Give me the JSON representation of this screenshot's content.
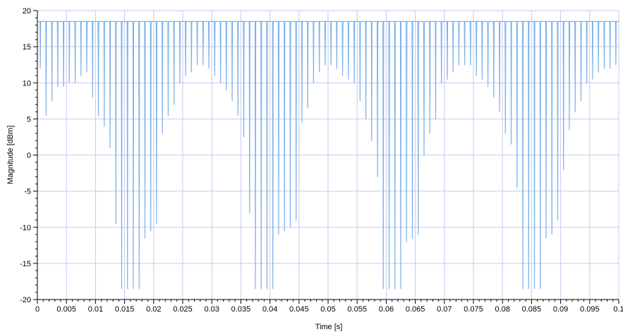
{
  "chart_data": {
    "type": "line",
    "title": "",
    "xlabel": "Time [s]",
    "ylabel": "Magnitude [dBm]",
    "xlim": [
      0,
      0.1
    ],
    "ylim": [
      -20,
      20
    ],
    "x_ticks": [
      "0",
      "0.005",
      "0.01",
      "0.015",
      "0.02",
      "0.025",
      "0.03",
      "0.035",
      "0.04",
      "0.045",
      "0.05",
      "0.055",
      "0.06",
      "0.065",
      "0.07",
      "0.075",
      "0.08",
      "0.085",
      "0.09",
      "0.095",
      "0.1"
    ],
    "y_ticks": [
      "20",
      "15",
      "10",
      "5",
      "0",
      "-5",
      "-10",
      "-15",
      "-20"
    ],
    "grid": true,
    "legend": "none",
    "line_color": "#7fb2ea",
    "grid_color": "#c6c8f0",
    "series": [
      {
        "peak_level": 18.5,
        "dip_period": 0.001,
        "x": [
          0.0005,
          0.0015,
          0.0025,
          0.0035,
          0.0045,
          0.0055,
          0.0065,
          0.0075,
          0.0085,
          0.0095,
          0.0105,
          0.0115,
          0.0125,
          0.0135,
          0.0145,
          0.0155,
          0.0165,
          0.0175,
          0.0185,
          0.0195,
          0.0205,
          0.0215,
          0.0225,
          0.0235,
          0.0245,
          0.0255,
          0.0265,
          0.0275,
          0.0285,
          0.0295,
          0.0305,
          0.0315,
          0.0325,
          0.0335,
          0.0345,
          0.0355,
          0.0365,
          0.0375,
          0.0385,
          0.0395,
          0.0405,
          0.0415,
          0.0425,
          0.0435,
          0.0445,
          0.0455,
          0.0465,
          0.0475,
          0.0485,
          0.0495,
          0.0505,
          0.0515,
          0.0525,
          0.0535,
          0.0545,
          0.0555,
          0.0565,
          0.0575,
          0.0585,
          0.0595,
          0.0605,
          0.0615,
          0.0625,
          0.0635,
          0.0645,
          0.0655,
          0.0665,
          0.0675,
          0.0685,
          0.0695,
          0.0705,
          0.0715,
          0.0725,
          0.0735,
          0.0745,
          0.0755,
          0.0765,
          0.0775,
          0.0785,
          0.0795,
          0.0805,
          0.0815,
          0.0825,
          0.0835,
          0.0845,
          0.0855,
          0.0865,
          0.0875,
          0.0885,
          0.0895,
          0.0905,
          0.0915,
          0.0925,
          0.0935,
          0.0945,
          0.0955,
          0.0965,
          0.0975,
          0.0985,
          0.0995
        ],
        "y": [
          12,
          5.5,
          7.5,
          9.5,
          9.5,
          10,
          10,
          11,
          11.5,
          8,
          5.5,
          4,
          1,
          -9.5,
          -18.5,
          -18.5,
          -18.5,
          -18.5,
          -11.5,
          -10.5,
          -9.5,
          3,
          5.5,
          7,
          10,
          11,
          11.5,
          12.5,
          12.5,
          12,
          11,
          10,
          9,
          7.5,
          5.5,
          2.5,
          -8,
          -18.5,
          -18.5,
          -18.5,
          -18.5,
          -11,
          -10.5,
          -10,
          -9,
          4.5,
          6.5,
          10,
          11.5,
          12.5,
          12.5,
          12,
          11,
          10.5,
          10,
          7.5,
          5,
          2,
          -3,
          -18.5,
          -18.5,
          -18.5,
          -18.5,
          -12,
          -11.5,
          -11,
          0,
          3,
          5,
          10,
          10.5,
          11.5,
          12.5,
          12.5,
          12.5,
          11,
          10.5,
          9.5,
          8,
          6,
          3,
          1.5,
          -4.5,
          -18.5,
          -18.5,
          -18.5,
          -18.5,
          -11.5,
          -11,
          -9,
          -2,
          3.5,
          6,
          7.5,
          10,
          10.5,
          11.5,
          12,
          12,
          12.5
        ]
      }
    ]
  }
}
